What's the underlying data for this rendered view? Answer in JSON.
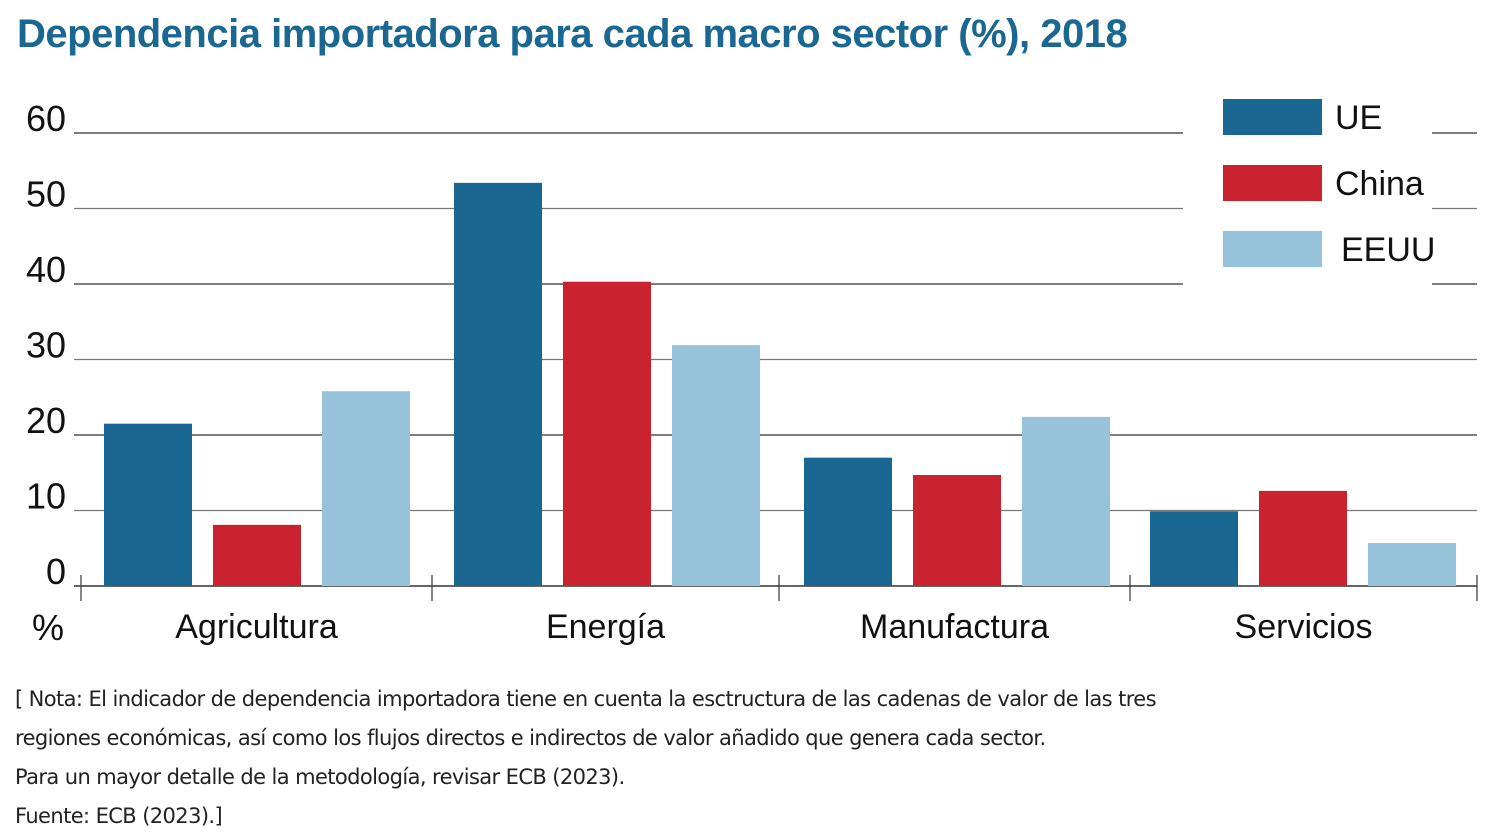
{
  "chart_data": {
    "type": "bar",
    "title": "Dependencia importadora para cada macro sector (%), 2018",
    "xlabel": "",
    "ylabel": "%",
    "ylim": [
      0,
      60
    ],
    "yticks": [
      0,
      10,
      20,
      30,
      40,
      50,
      60
    ],
    "grid": true,
    "legend_position": "top-right",
    "categories": [
      "Agricultura",
      "Energía",
      "Manufactura",
      "Servicios"
    ],
    "series": [
      {
        "name": "UE",
        "color": "#1a6891",
        "values": [
          21.5,
          53.4,
          17.0,
          9.9
        ]
      },
      {
        "name": "China",
        "color": "#c8232f",
        "values": [
          8.1,
          40.3,
          14.7,
          12.6
        ]
      },
      {
        "name": "EEUU",
        "color": "#97c3da",
        "values": [
          25.8,
          31.9,
          22.4,
          5.7
        ]
      }
    ]
  },
  "notes": [
    "[ Nota: El indicador de dependencia importadora tiene en cuenta la esctructura de las cadenas de valor de las tres",
    "regiones económicas, así como los flujos directos e indirectos de valor añadido que genera cada sector.",
    "Para un mayor detalle de la metodología, revisar ECB (2023).",
    "Fuente: ECB (2023).]"
  ]
}
